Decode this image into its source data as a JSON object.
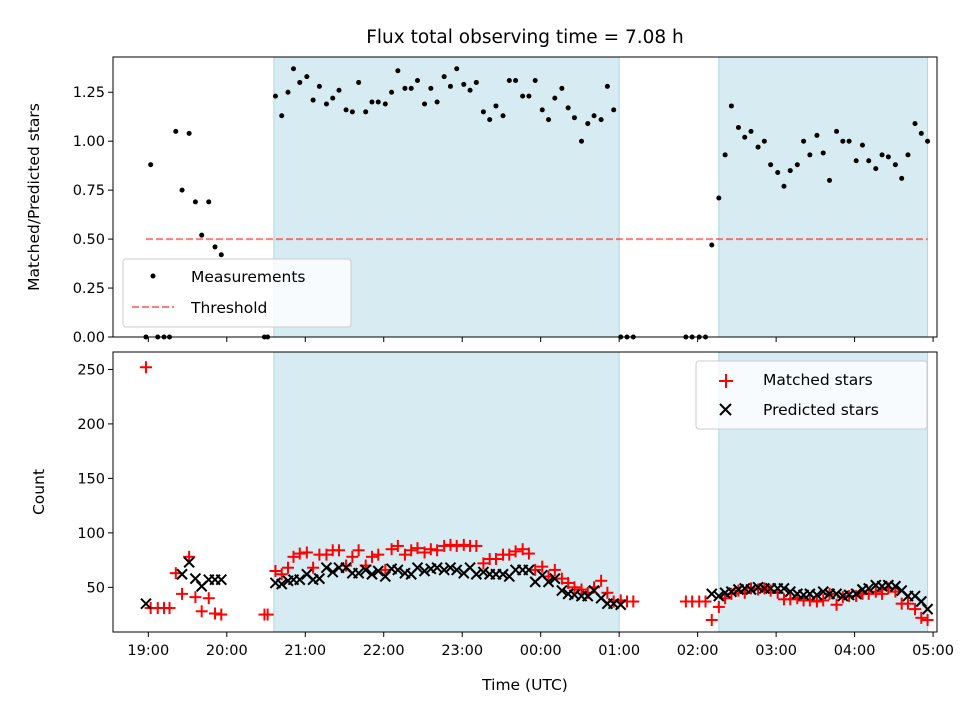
{
  "title": "Flux total observing time = 7.08 h",
  "colors": {
    "shade": "#add8e6",
    "measurement": "#000000",
    "threshold": "#ff0000",
    "matched": "#ff0000",
    "predicted": "#000000"
  },
  "chart_data": [
    {
      "type": "scatter",
      "ylabel": "Matched/Predicted stars",
      "ylim": [
        0,
        1.43
      ],
      "yticks": [
        0.0,
        0.25,
        0.5,
        0.75,
        1.0,
        1.25
      ],
      "ytick_labels": [
        "0.00",
        "0.25",
        "0.50",
        "0.75",
        "1.00",
        "1.25"
      ],
      "xlim_hours": [
        18.55,
        29.05
      ],
      "shaded_intervals_hours": [
        [
          20.6,
          25.0
        ],
        [
          26.27,
          28.93
        ]
      ],
      "threshold": {
        "name": "Threshold",
        "value": 0.5,
        "x_range_hours": [
          18.97,
          28.93
        ]
      },
      "legend": {
        "placement": "lower-left",
        "entries": [
          "Measurements",
          "Threshold"
        ]
      },
      "series": [
        {
          "name": "Measurements",
          "x_hours": [
            18.97,
            19.03,
            19.12,
            19.2,
            19.27,
            19.35,
            19.43,
            19.52,
            19.6,
            19.68,
            19.77,
            19.85,
            19.93,
            20.48,
            20.52,
            20.62,
            20.7,
            20.78,
            20.85,
            20.93,
            21.02,
            21.1,
            21.18,
            21.27,
            21.35,
            21.43,
            21.52,
            21.6,
            21.68,
            21.77,
            21.85,
            21.93,
            22.02,
            22.1,
            22.18,
            22.27,
            22.35,
            22.43,
            22.52,
            22.6,
            22.68,
            22.77,
            22.85,
            22.93,
            23.02,
            23.1,
            23.18,
            23.27,
            23.35,
            23.43,
            23.52,
            23.6,
            23.68,
            23.77,
            23.85,
            23.93,
            24.02,
            24.1,
            24.18,
            24.27,
            24.35,
            24.43,
            24.52,
            24.6,
            24.68,
            24.77,
            24.85,
            24.93,
            25.02,
            25.1,
            25.18,
            25.85,
            25.93,
            26.02,
            26.1,
            26.18,
            26.27,
            26.35,
            26.43,
            26.52,
            26.6,
            26.68,
            26.77,
            26.85,
            26.93,
            27.02,
            27.1,
            27.18,
            27.27,
            27.35,
            27.43,
            27.52,
            27.6,
            27.68,
            27.77,
            27.85,
            27.93,
            28.02,
            28.1,
            28.18,
            28.27,
            28.35,
            28.43,
            28.52,
            28.6,
            28.68,
            28.77,
            28.85,
            28.93
          ],
          "y": [
            0.0,
            0.88,
            0.0,
            0.0,
            0.0,
            1.05,
            0.75,
            1.04,
            0.69,
            0.52,
            0.69,
            0.46,
            0.42,
            0.0,
            0.0,
            1.23,
            1.13,
            1.25,
            1.37,
            1.3,
            1.33,
            1.21,
            1.28,
            1.19,
            1.22,
            1.26,
            1.16,
            1.15,
            1.3,
            1.15,
            1.2,
            1.2,
            1.19,
            1.25,
            1.36,
            1.27,
            1.27,
            1.31,
            1.19,
            1.27,
            1.2,
            1.33,
            1.28,
            1.37,
            1.29,
            1.26,
            1.3,
            1.15,
            1.11,
            1.18,
            1.13,
            1.31,
            1.31,
            1.23,
            1.23,
            1.31,
            1.16,
            1.11,
            1.22,
            1.27,
            1.17,
            1.12,
            1.0,
            1.09,
            1.13,
            1.11,
            1.28,
            1.16,
            0.0,
            0.0,
            0.0,
            0.0,
            0.0,
            0.0,
            0.0,
            0.47,
            0.71,
            0.93,
            1.18,
            1.07,
            1.02,
            1.05,
            0.97,
            1.0,
            0.88,
            0.84,
            0.77,
            0.85,
            0.88,
            1.0,
            0.93,
            1.03,
            0.94,
            0.8,
            1.05,
            1.0,
            1.0,
            0.9,
            0.98,
            0.9,
            0.86,
            0.93,
            0.92,
            0.88,
            0.81,
            0.93,
            1.09,
            1.04,
            1.0
          ]
        }
      ]
    },
    {
      "type": "scatter",
      "xlabel": "Time (UTC)",
      "ylabel": "Count",
      "ylim": [
        9,
        266
      ],
      "yticks": [
        50,
        100,
        150,
        200,
        250
      ],
      "ytick_labels": [
        "50",
        "100",
        "150",
        "200",
        "250"
      ],
      "xlim_hours": [
        18.55,
        29.05
      ],
      "xticks_hours": [
        19,
        20,
        21,
        22,
        23,
        24,
        25,
        26,
        27,
        28,
        29
      ],
      "xtick_labels": [
        "19:00",
        "20:00",
        "21:00",
        "22:00",
        "23:00",
        "00:00",
        "01:00",
        "02:00",
        "03:00",
        "04:00",
        "05:00"
      ],
      "shaded_intervals_hours": [
        [
          20.6,
          25.0
        ],
        [
          26.27,
          28.93
        ]
      ],
      "legend": {
        "placement": "upper-right",
        "entries": [
          "Matched stars",
          "Predicted stars"
        ]
      },
      "series": [
        {
          "name": "Matched stars",
          "x_hours": [
            18.97,
            19.03,
            19.12,
            19.2,
            19.27,
            19.35,
            19.43,
            19.52,
            19.6,
            19.68,
            19.77,
            19.85,
            19.93,
            20.48,
            20.52,
            20.62,
            20.7,
            20.78,
            20.85,
            20.93,
            21.02,
            21.1,
            21.18,
            21.27,
            21.35,
            21.43,
            21.52,
            21.6,
            21.68,
            21.77,
            21.85,
            21.93,
            22.02,
            22.1,
            22.18,
            22.27,
            22.35,
            22.43,
            22.52,
            22.6,
            22.68,
            22.77,
            22.85,
            22.93,
            23.02,
            23.1,
            23.18,
            23.27,
            23.35,
            23.43,
            23.52,
            23.6,
            23.68,
            23.77,
            23.85,
            23.93,
            24.02,
            24.1,
            24.18,
            24.27,
            24.35,
            24.43,
            24.52,
            24.6,
            24.68,
            24.77,
            24.85,
            24.93,
            25.02,
            25.1,
            25.18,
            25.85,
            25.93,
            26.02,
            26.1,
            26.18,
            26.27,
            26.35,
            26.43,
            26.52,
            26.6,
            26.68,
            26.77,
            26.85,
            26.93,
            27.02,
            27.1,
            27.18,
            27.27,
            27.35,
            27.43,
            27.52,
            27.6,
            27.68,
            27.77,
            27.85,
            27.93,
            28.02,
            28.1,
            28.18,
            28.27,
            28.35,
            28.43,
            28.52,
            28.6,
            28.68,
            28.77,
            28.85,
            28.93
          ],
          "y": [
            252,
            31,
            31,
            31,
            31,
            63,
            44,
            78,
            41,
            28,
            40,
            26,
            25,
            25,
            25,
            65,
            62,
            68,
            78,
            81,
            82,
            68,
            80,
            80,
            84,
            84,
            70,
            78,
            84,
            70,
            78,
            80,
            66,
            85,
            88,
            80,
            84,
            86,
            82,
            85,
            84,
            88,
            89,
            88,
            89,
            88,
            88,
            72,
            76,
            76,
            80,
            80,
            83,
            85,
            81,
            66,
            69,
            60,
            66,
            58,
            54,
            50,
            48,
            45,
            50,
            56,
            45,
            37,
            38,
            37,
            37,
            37,
            37,
            37,
            37,
            20,
            32,
            40,
            44,
            47,
            45,
            49,
            48,
            49,
            47,
            45,
            39,
            39,
            40,
            38,
            38,
            37,
            38,
            44,
            34,
            41,
            42,
            42,
            44,
            44,
            46,
            44,
            49,
            46,
            35,
            35,
            30,
            22,
            20
          ]
        },
        {
          "name": "Predicted stars",
          "x_hours": [
            18.97,
            19.43,
            19.52,
            19.6,
            19.68,
            19.77,
            19.85,
            19.93,
            20.62,
            20.7,
            20.78,
            20.85,
            20.93,
            21.02,
            21.1,
            21.18,
            21.27,
            21.35,
            21.43,
            21.52,
            21.6,
            21.68,
            21.77,
            21.85,
            21.93,
            22.02,
            22.1,
            22.18,
            22.27,
            22.35,
            22.43,
            22.52,
            22.6,
            22.68,
            22.77,
            22.85,
            22.93,
            23.02,
            23.1,
            23.18,
            23.27,
            23.35,
            23.43,
            23.52,
            23.6,
            23.68,
            23.77,
            23.85,
            23.93,
            24.02,
            24.1,
            24.18,
            24.27,
            24.35,
            24.43,
            24.52,
            24.6,
            24.68,
            24.77,
            24.85,
            24.93,
            25.02,
            26.18,
            26.27,
            26.35,
            26.43,
            26.52,
            26.6,
            26.68,
            26.77,
            26.85,
            26.93,
            27.02,
            27.1,
            27.18,
            27.27,
            27.35,
            27.43,
            27.52,
            27.6,
            27.68,
            27.77,
            27.85,
            27.93,
            28.02,
            28.1,
            28.18,
            28.27,
            28.35,
            28.43,
            28.52,
            28.6,
            28.68,
            28.77,
            28.85,
            28.93
          ],
          "y": [
            35,
            62,
            73,
            58,
            51,
            57,
            57,
            57,
            54,
            53,
            56,
            57,
            57,
            62,
            57,
            58,
            68,
            64,
            68,
            68,
            63,
            63,
            66,
            62,
            65,
            60,
            67,
            66,
            63,
            62,
            68,
            65,
            67,
            68,
            66,
            68,
            66,
            63,
            68,
            62,
            64,
            62,
            62,
            62,
            60,
            66,
            66,
            66,
            55,
            61,
            55,
            58,
            47,
            44,
            43,
            42,
            42,
            47,
            40,
            35,
            35,
            34,
            44,
            42,
            45,
            46,
            48,
            49,
            48,
            50,
            49,
            49,
            49,
            49,
            46,
            44,
            43,
            44,
            43,
            46,
            44,
            44,
            42,
            43,
            44,
            48,
            49,
            52,
            51,
            52,
            51,
            47,
            42,
            42,
            37,
            30
          ]
        }
      ]
    }
  ]
}
